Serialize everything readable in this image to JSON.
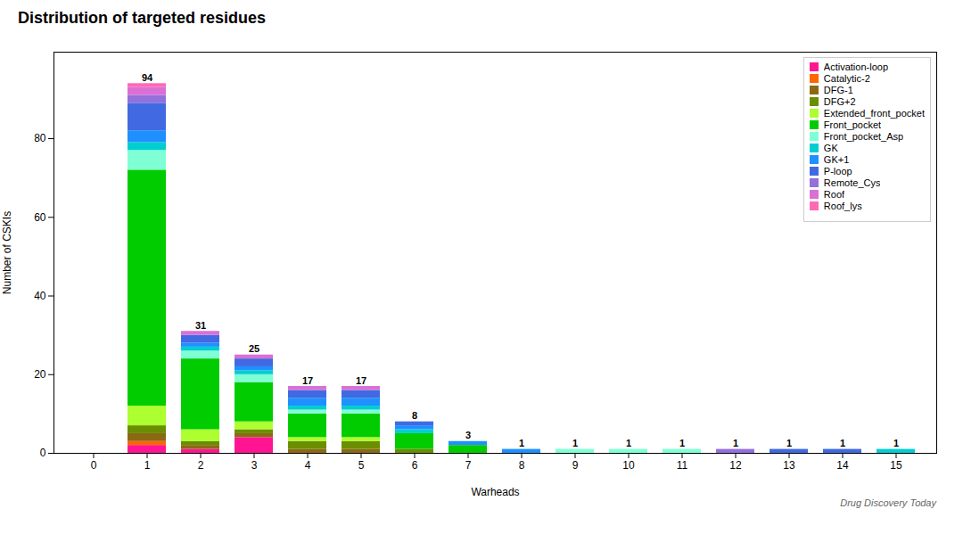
{
  "chart_data": {
    "type": "bar",
    "stacked": true,
    "title": "Distribution of targeted residues",
    "x_label": "Warheads",
    "y_label": "Number of CSKIs",
    "annotations": [
      "Drug Discovery Today"
    ],
    "categories": [
      0,
      1,
      2,
      3,
      4,
      5,
      6,
      7,
      8,
      9,
      10,
      11,
      12,
      13,
      14,
      15
    ],
    "series": [
      {
        "name": "Activation-loop",
        "color": "#FF1493",
        "values": [
          0,
          2,
          1,
          4,
          0,
          0,
          0,
          0,
          0,
          0,
          0,
          0,
          0,
          0,
          0,
          0
        ]
      },
      {
        "name": "Catalytic-2",
        "color": "#FF6600",
        "values": [
          0,
          1,
          0,
          0,
          0,
          0,
          0,
          0,
          0,
          0,
          0,
          0,
          0,
          0,
          0,
          0
        ]
      },
      {
        "name": "DFG-1",
        "color": "#8B6914",
        "values": [
          0,
          2,
          1,
          1,
          1,
          1,
          0,
          0,
          0,
          0,
          0,
          0,
          0,
          0,
          0,
          0
        ]
      },
      {
        "name": "DFG+2",
        "color": "#6B8E00",
        "values": [
          0,
          2,
          1,
          1,
          2,
          2,
          1,
          0,
          0,
          0,
          0,
          0,
          0,
          0,
          0,
          0
        ]
      },
      {
        "name": "Extended_front_pocket",
        "color": "#ADFF2F",
        "values": [
          0,
          5,
          3,
          2,
          1,
          1,
          0,
          0,
          0,
          0,
          0,
          0,
          0,
          0,
          0,
          0
        ]
      },
      {
        "name": "Front_pocket",
        "color": "#00CC00",
        "values": [
          0,
          60,
          18,
          10,
          6,
          6,
          4,
          2,
          0,
          0,
          0,
          0,
          0,
          0,
          0,
          0
        ]
      },
      {
        "name": "Front_pocket_Asp",
        "color": "#7FFFD4",
        "values": [
          0,
          5,
          2,
          2,
          1,
          1,
          0,
          0,
          0,
          1,
          1,
          1,
          0,
          0,
          0,
          0
        ]
      },
      {
        "name": "GK",
        "color": "#00CED1",
        "values": [
          0,
          2,
          1,
          1,
          1,
          1,
          1,
          0,
          0,
          0,
          0,
          0,
          0,
          0,
          0,
          1
        ]
      },
      {
        "name": "GK+1",
        "color": "#1E90FF",
        "values": [
          0,
          3,
          1,
          1,
          2,
          2,
          1,
          1,
          1,
          0,
          0,
          0,
          0,
          0,
          0,
          0
        ]
      },
      {
        "name": "P-loop",
        "color": "#4169E1",
        "values": [
          0,
          7,
          2,
          2,
          2,
          2,
          1,
          0,
          0,
          0,
          0,
          0,
          0,
          1,
          1,
          0
        ]
      },
      {
        "name": "Remote_Cys",
        "color": "#9370DB",
        "values": [
          0,
          2,
          0,
          0,
          0,
          0,
          0,
          0,
          0,
          0,
          0,
          0,
          1,
          0,
          0,
          0
        ]
      },
      {
        "name": "Roof",
        "color": "#DA70D6",
        "values": [
          0,
          2,
          1,
          1,
          1,
          1,
          0,
          0,
          0,
          0,
          0,
          0,
          0,
          0,
          0,
          0
        ]
      },
      {
        "name": "Roof_lys",
        "color": "#FF69B4",
        "values": [
          0,
          1,
          0,
          0,
          0,
          0,
          0,
          0,
          0,
          0,
          0,
          0,
          0,
          0,
          0,
          0
        ]
      }
    ],
    "totals": [
      null,
      94,
      31,
      25,
      17,
      17,
      8,
      3,
      1,
      1,
      1,
      1,
      1,
      1,
      1,
      1
    ],
    "ylim": [
      0,
      102
    ],
    "yticks": [
      0,
      20,
      40,
      60,
      80
    ],
    "legend": "upper right",
    "grid": false
  }
}
